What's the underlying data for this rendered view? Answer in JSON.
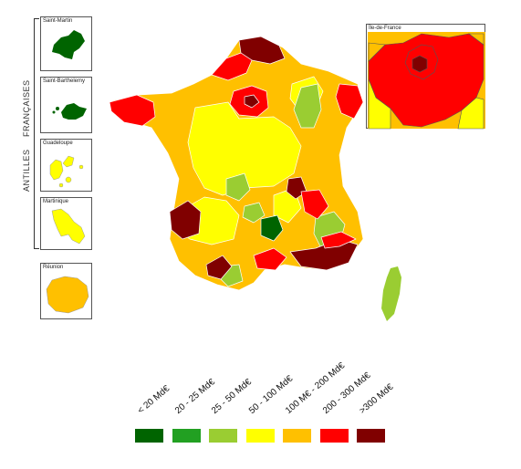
{
  "insets": {
    "saint_martin": "Saint-Martin",
    "saint_barthelemy": "Saint-Barthelemy",
    "guadeloupe": "Guadeloupe",
    "martinique": "Martinique",
    "reunion": "Réunion",
    "ile_de_france": "Île-de-France"
  },
  "side_labels": {
    "antilles": "ANTILLES",
    "francaises": "FRANÇAISES"
  },
  "legend": [
    {
      "label": "< 20 Md€",
      "color": "#006400"
    },
    {
      "label": "20 - 25 Md€",
      "color": "#22a022"
    },
    {
      "label": "25 - 50 Md€",
      "color": "#9acd32"
    },
    {
      "label": "50 - 100 Md€",
      "color": "#ffff00"
    },
    {
      "label": "100 M€ - 200 Md€",
      "color": "#ffc000"
    },
    {
      "label": "200 - 300 Md€",
      "color": "#ff0000"
    },
    {
      "label": ">300 Md€",
      "color": "#800000"
    }
  ]
}
